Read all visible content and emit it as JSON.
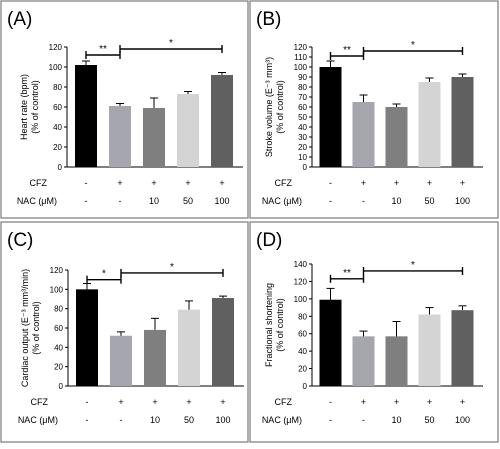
{
  "figure": {
    "colors": {
      "frame": "#7a7a7a",
      "axis": "#000000",
      "text": "#000000",
      "error": "#000000"
    },
    "row_labels": {
      "cfz": "CFZ",
      "nac": "NAC (μM)"
    }
  },
  "chart_data": [
    {
      "panel": "(A)",
      "type": "bar",
      "ylabel": "Heart rate (bpm)",
      "ylabel2": "(% of control)",
      "ylim": [
        0,
        120
      ],
      "yticks": [
        0,
        20,
        40,
        60,
        80,
        100,
        120
      ],
      "ytick_labels": [
        "0",
        "20",
        "40",
        "60",
        "80",
        "100",
        "120"
      ],
      "categories": [
        "control",
        "CFZ",
        "CFZ+NAC 10",
        "CFZ+NAC 50",
        "CFZ+NAC 100"
      ],
      "values": [
        102,
        61,
        59,
        73,
        92
      ],
      "errors": [
        4,
        2.5,
        10,
        2.5,
        2.5
      ],
      "colors": [
        "#000000",
        "#a6a6ae",
        "#7f7f7f",
        "#d4d4d4",
        "#606060"
      ],
      "cfz_row": [
        "-",
        "+",
        "+",
        "+",
        "+"
      ],
      "nac_row": [
        "-",
        "-",
        "10",
        "50",
        "100"
      ],
      "significance": [
        {
          "from": 0,
          "to": 1,
          "label": "**",
          "level": 112
        },
        {
          "from": 1,
          "to": 4,
          "label": "*",
          "level": 118
        }
      ]
    },
    {
      "panel": "(B)",
      "type": "bar",
      "ylabel": "Stroke volume (E⁻³ mm³)",
      "ylabel2": "(% of control)",
      "ylim": [
        0,
        120
      ],
      "yticks": [
        0,
        10,
        20,
        30,
        40,
        50,
        60,
        70,
        80,
        90,
        100,
        110,
        120
      ],
      "ytick_labels": [
        "0",
        "10",
        "20",
        "30",
        "40",
        "50",
        "60",
        "70",
        "80",
        "90",
        "100",
        "110",
        "120"
      ],
      "categories": [
        "control",
        "CFZ",
        "CFZ+NAC 10",
        "CFZ+NAC 50",
        "CFZ+NAC 100"
      ],
      "values": [
        100,
        65,
        60,
        85,
        90
      ],
      "errors": [
        6,
        7,
        3,
        4,
        3
      ],
      "colors": [
        "#000000",
        "#a6a6ae",
        "#7f7f7f",
        "#d4d4d4",
        "#606060"
      ],
      "cfz_row": [
        "-",
        "+",
        "+",
        "+",
        "+"
      ],
      "nac_row": [
        "-",
        "-",
        "10",
        "50",
        "100"
      ],
      "significance": [
        {
          "from": 0,
          "to": 1,
          "label": "**",
          "level": 111
        },
        {
          "from": 1,
          "to": 4,
          "label": "*",
          "level": 116
        }
      ]
    },
    {
      "panel": "(C)",
      "type": "bar",
      "ylabel": "Cardiac output (E⁻³ mm³/min)",
      "ylabel2": "(% of control)",
      "ylim": [
        0,
        120
      ],
      "yticks": [
        0,
        20,
        40,
        60,
        80,
        100,
        120
      ],
      "ytick_labels": [
        "0",
        "20",
        "40",
        "60",
        "80",
        "100",
        "120"
      ],
      "categories": [
        "control",
        "CFZ",
        "CFZ+NAC 10",
        "CFZ+NAC 50",
        "CFZ+NAC 100"
      ],
      "values": [
        100,
        52,
        58,
        79,
        91
      ],
      "errors": [
        6,
        4,
        12,
        9,
        2
      ],
      "colors": [
        "#000000",
        "#a6a6ae",
        "#7f7f7f",
        "#d4d4d4",
        "#606060"
      ],
      "cfz_row": [
        "-",
        "+",
        "+",
        "+",
        "+"
      ],
      "nac_row": [
        "-",
        "-",
        "10",
        "50",
        "100"
      ],
      "significance": [
        {
          "from": 0,
          "to": 1,
          "label": "*",
          "level": 110
        },
        {
          "from": 1,
          "to": 4,
          "label": "*",
          "level": 117
        }
      ]
    },
    {
      "panel": "(D)",
      "type": "bar",
      "ylabel": "Fractional shortening",
      "ylabel2": "(% of control)",
      "ylim": [
        0,
        140
      ],
      "yticks": [
        0,
        20,
        40,
        60,
        80,
        100,
        120,
        140
      ],
      "ytick_labels": [
        "0",
        "20",
        "40",
        "60",
        "80",
        "100",
        "120",
        "140"
      ],
      "categories": [
        "control",
        "CFZ",
        "CFZ+NAC 10",
        "CFZ+NAC 50",
        "CFZ+NAC 100"
      ],
      "values": [
        99,
        57,
        57,
        82,
        87
      ],
      "errors": [
        13,
        6,
        17,
        8,
        5
      ],
      "colors": [
        "#000000",
        "#a6a6ae",
        "#7f7f7f",
        "#d4d4d4",
        "#606060"
      ],
      "cfz_row": [
        "-",
        "+",
        "+",
        "+",
        "+"
      ],
      "nac_row": [
        "-",
        "-",
        "10",
        "50",
        "100"
      ],
      "significance": [
        {
          "from": 0,
          "to": 1,
          "label": "**",
          "level": 123
        },
        {
          "from": 1,
          "to": 4,
          "label": "*",
          "level": 132
        }
      ]
    }
  ]
}
